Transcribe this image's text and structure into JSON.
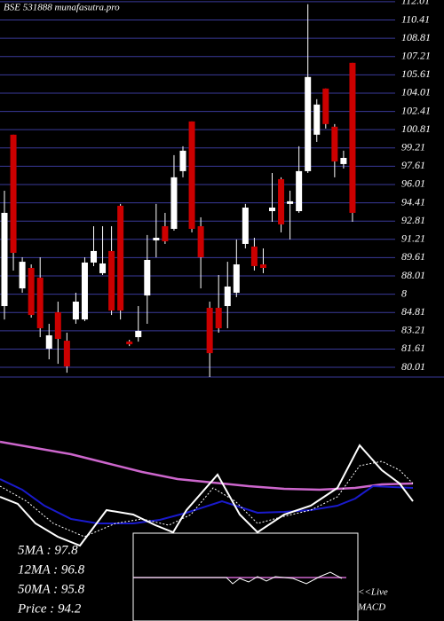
{
  "chart_data": {
    "type": "candlestick",
    "title": "BSE 531888 munafasutra.pro",
    "ylim": [
      79.16,
      112.16
    ],
    "yticks": [
      112.01,
      110.41,
      108.81,
      107.21,
      105.61,
      104.01,
      102.41,
      100.81,
      99.21,
      97.61,
      96.01,
      94.41,
      92.81,
      91.21,
      89.61,
      88.01,
      {
        "value": 86.41,
        "label": "8"
      },
      84.81,
      83.21,
      81.61,
      80.01
    ],
    "grid": true,
    "up_color": "#ffffff",
    "down_color": "#cc0000",
    "open": [
      85.37,
      100.37,
      86.92,
      88.71,
      87.86,
      81.64,
      84.83,
      82.34,
      84.2,
      84.2,
      89.18,
      88.25,
      90.19,
      94.15,
      82.27,
      82.65,
      86.3,
      91.12,
      92.36,
      92.13,
      97.18,
      101.53,
      92.36,
      85.22,
      85.22,
      85.37,
      86.54,
      90.81,
      90.58,
      89.02,
      93.68,
      96.48,
      94.31,
      93.68,
      97.18,
      100.37,
      104.41,
      101.07,
      97.8,
      106.66
    ],
    "high": [
      95.47,
      100.37,
      89.64,
      89.02,
      89.64,
      83.82,
      85.76,
      83.04,
      86.54,
      89.64,
      92.36,
      92.36,
      92.36,
      94.31,
      82.42,
      85.37,
      91.59,
      94.31,
      93.53,
      98.58,
      99.36,
      101.53,
      93.14,
      85.76,
      88.09,
      89.25,
      91.2,
      94.31,
      91.35,
      90.42,
      97.02,
      96.64,
      95.47,
      99.36,
      111.79,
      103.48,
      104.41,
      101.3,
      98.97,
      106.66
    ],
    "low": [
      84.2,
      88.48,
      86.54,
      84.36,
      82.65,
      80.71,
      80.32,
      79.54,
      83.82,
      84.05,
      88.87,
      88.09,
      84.59,
      84.2,
      81.87,
      82.26,
      83.82,
      89.64,
      90.81,
      91.97,
      96.64,
      91.82,
      86.92,
      79.16,
      83.04,
      83.43,
      86.15,
      90.42,
      88.48,
      88.25,
      92.75,
      91.82,
      91.2,
      93.53,
      97.02,
      99.74,
      100.91,
      96.64,
      97.41,
      92.75
    ],
    "close": [
      93.53,
      90.03,
      89.25,
      84.59,
      83.43,
      82.81,
      82.5,
      80.09,
      85.76,
      89.18,
      90.19,
      89.1,
      84.98,
      84.98,
      82.03,
      83.2,
      89.41,
      91.35,
      91.04,
      96.64,
      98.97,
      92.13,
      89.64,
      81.25,
      83.43,
      87.08,
      89.02,
      93.99,
      88.87,
      88.71,
      93.99,
      92.52,
      94.54,
      97.18,
      105.42,
      103.01,
      101.3,
      98.03,
      98.34,
      93.53
    ],
    "legend": [
      "5MA : 97.8",
      "12MA : 96.8",
      "50MA : 95.8",
      "Price  : 94.2"
    ],
    "macd_label": [
      "<<Live",
      "MACD"
    ]
  }
}
